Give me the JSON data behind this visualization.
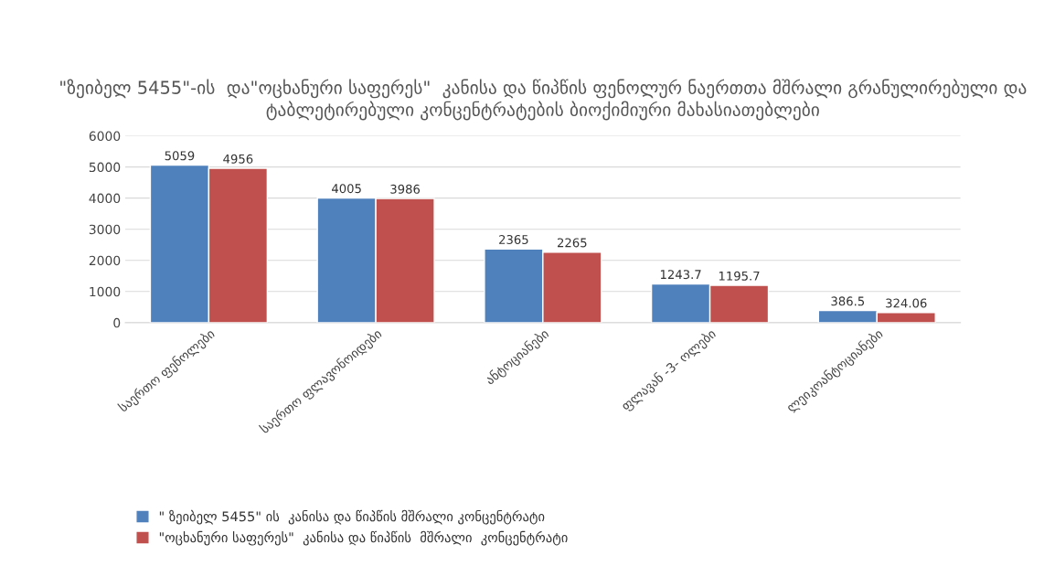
{
  "chart_data": {
    "type": "bar",
    "title": "\"ზეიბელ 5455\"-ის  და\"ოცხანური საფერეს\"  კანისა და წიპწის ფენოლურ ნაერთთა მშრალი გრანულირებული და ტაბლეტირებული კონცენტრატების ბიოქიმიური მახასიათებლები",
    "categories": [
      "საერთო ფენოლები",
      "საერთო ფლავონოიდები",
      "ანტოციანები",
      "ფლავან -3- ოლები",
      "ლეიკოანტოციანები"
    ],
    "series": [
      {
        "name": "\" ზეიბელ 5455\" ის  კანისა და წიპწის მშრალი კონცენტრატი",
        "color": "#4f81bd",
        "values": [
          5059,
          4005,
          2365,
          1243.7,
          386.5
        ]
      },
      {
        "name": "\"ოცხანური საფერეს\"  კანისა და წიპწის  მშრალი  კონცენტრატი",
        "color": "#c0504d",
        "values": [
          4956,
          3986,
          2265,
          1195.7,
          324.06
        ]
      }
    ],
    "ylim": [
      0,
      6000
    ],
    "yticks": [
      0,
      1000,
      2000,
      3000,
      4000,
      5000,
      6000
    ],
    "grid": "y",
    "legend": "bottom",
    "data_labels": true
  }
}
